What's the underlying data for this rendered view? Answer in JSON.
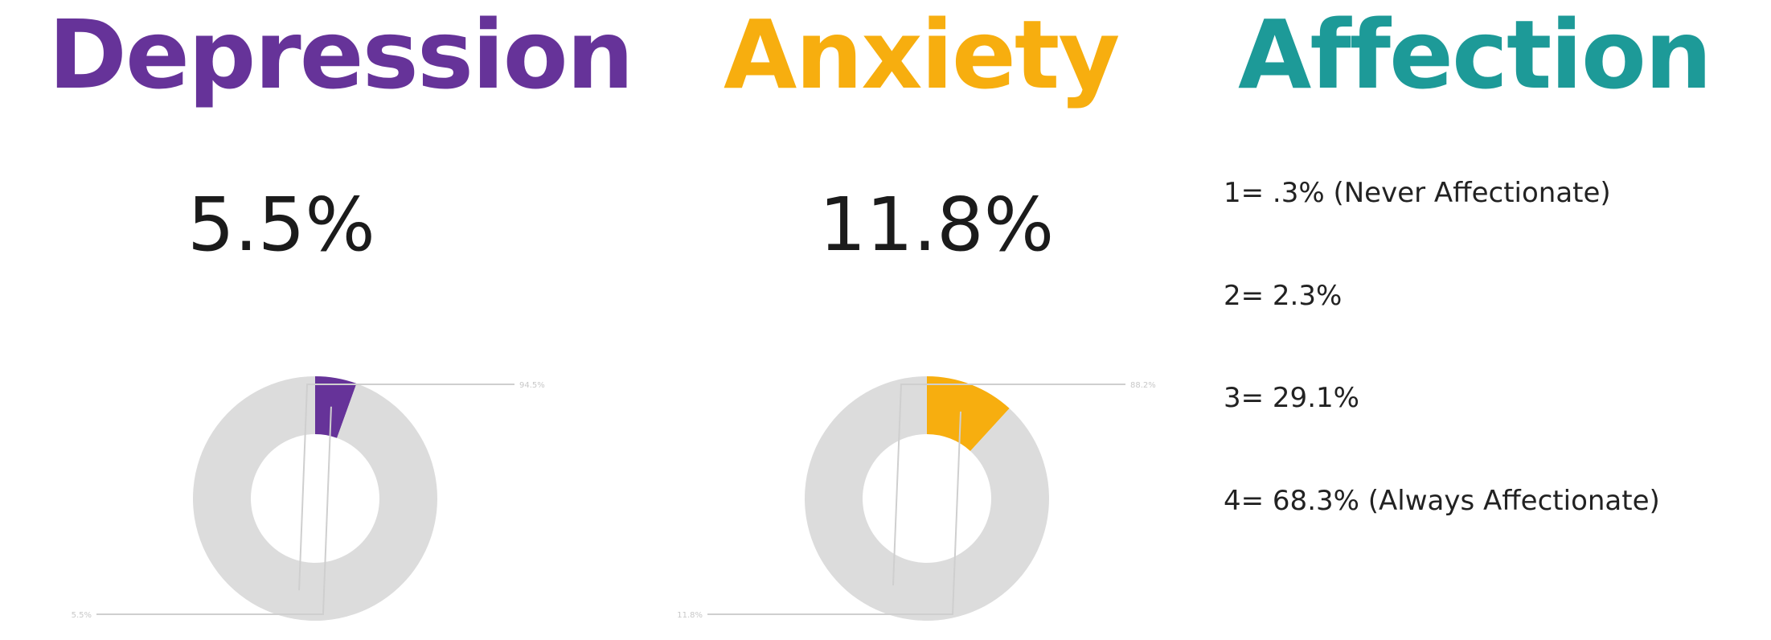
{
  "colors": {
    "depression": "#663399",
    "anxiety": "#f7ae0f",
    "affection": "#1d9a98",
    "remainder": "#dcdcdc",
    "leader": "#cfcfcf"
  },
  "headings": {
    "depression": "Depression",
    "anxiety": "Anxiety",
    "affection": "Affection"
  },
  "stats": {
    "depression": "5.5%",
    "anxiety": "11.8%"
  },
  "affection": {
    "items": [
      "1= .3% (Never Affectionate)",
      "2= 2.3%",
      "3= 29.1%",
      "4= 68.3% (Always Affectionate)"
    ]
  },
  "chart_data": [
    {
      "type": "pie",
      "title": "Depression",
      "slices": [
        {
          "value": 5.5,
          "color": "#663399"
        },
        {
          "value": 94.5,
          "color": "#dcdcdc"
        }
      ],
      "labels": [
        "5.5%",
        "94.5%"
      ]
    },
    {
      "type": "pie",
      "title": "Anxiety",
      "slices": [
        {
          "value": 11.8,
          "color": "#f7ae0f"
        },
        {
          "value": 88.2,
          "color": "#dcdcdc"
        }
      ],
      "labels": [
        "11.8%",
        "88.2%"
      ]
    }
  ]
}
